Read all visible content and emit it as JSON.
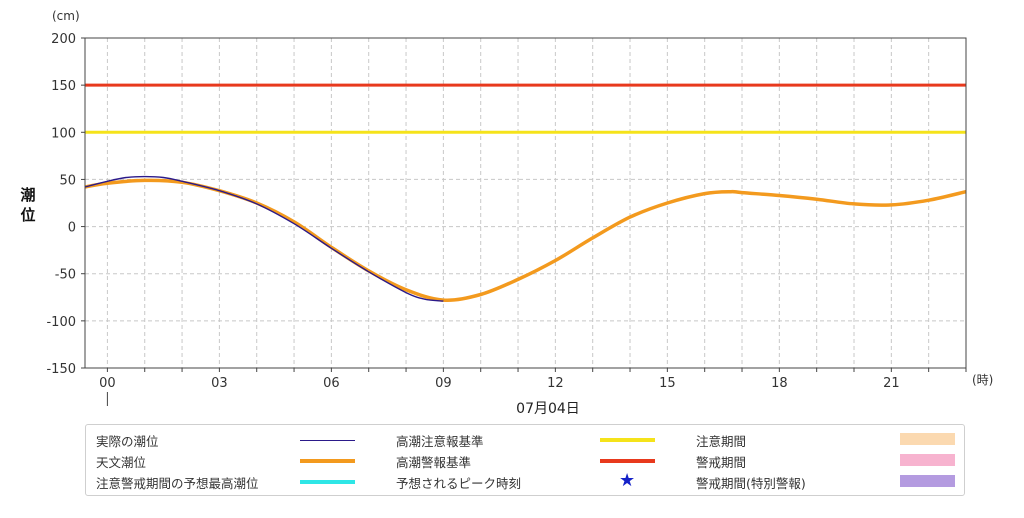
{
  "chart_data": {
    "type": "line",
    "y_unit": "(cm)",
    "x_unit": "(時)",
    "ylabel": "潮位",
    "date_label": "07月04日",
    "ylim": [
      -150,
      200
    ],
    "y_ticks": [
      200,
      150,
      100,
      50,
      0,
      -50,
      -100,
      -150
    ],
    "x_range_hours": [
      -0.6,
      23.0
    ],
    "x_ticks": [
      {
        "hour": 0,
        "label": "00"
      },
      {
        "hour": 3,
        "label": "03"
      },
      {
        "hour": 6,
        "label": "06"
      },
      {
        "hour": 9,
        "label": "09"
      },
      {
        "hour": 12,
        "label": "12"
      },
      {
        "hour": 15,
        "label": "15"
      },
      {
        "hour": 18,
        "label": "18"
      },
      {
        "hour": 21,
        "label": "21"
      }
    ],
    "grid": true,
    "reference_lines": [
      {
        "name": "高潮警報基準",
        "value": 150,
        "color": "#e8391d"
      },
      {
        "name": "高潮注意報基準",
        "value": 100,
        "color": "#f5e31a"
      }
    ],
    "series": [
      {
        "name": "天文潮位",
        "color": "#f39a1e",
        "x": [
          -0.6,
          0,
          1,
          2,
          3,
          4,
          5,
          6,
          7,
          8,
          9,
          10,
          11,
          12,
          13,
          14,
          15,
          16,
          16.7,
          17,
          18,
          19,
          20,
          21,
          22,
          23
        ],
        "y": [
          42,
          46,
          49,
          47,
          38,
          25,
          5,
          -22,
          -47,
          -67,
          -78,
          -72,
          -56,
          -36,
          -12,
          10,
          25,
          35,
          37,
          36,
          33,
          29,
          24,
          23,
          28,
          37
        ]
      },
      {
        "name": "実際の潮位",
        "color": "#2b1a8a",
        "x": [
          -0.6,
          0,
          0.5,
          1,
          1.5,
          2,
          3,
          4,
          5,
          6,
          7,
          8,
          8.5,
          9
        ],
        "y": [
          42,
          48,
          52,
          53,
          52,
          48,
          38,
          24,
          3,
          -23,
          -48,
          -70,
          -77,
          -79
        ]
      }
    ]
  },
  "legend": {
    "items": [
      {
        "label": "実際の潮位",
        "symbol": "thin-line",
        "color": "#2b1a8a"
      },
      {
        "label": "天文潮位",
        "symbol": "line",
        "color": "#f39a1e"
      },
      {
        "label": "注意警戒期間の予想最高潮位",
        "symbol": "line",
        "color": "#2ee6e6"
      },
      {
        "label": "高潮注意報基準",
        "symbol": "line",
        "color": "#f5e31a"
      },
      {
        "label": "高潮警報基準",
        "symbol": "line",
        "color": "#e8391d"
      },
      {
        "label": "予想されるピーク時刻",
        "symbol": "★",
        "color": "#1522c8"
      },
      {
        "label": "注意期間",
        "symbol": "box",
        "color": "#fbd9b0"
      },
      {
        "label": "警戒期間",
        "symbol": "box",
        "color": "#f7b3cf"
      },
      {
        "label": "警戒期間(特別警報)",
        "symbol": "box",
        "color": "#b49be0"
      }
    ]
  }
}
